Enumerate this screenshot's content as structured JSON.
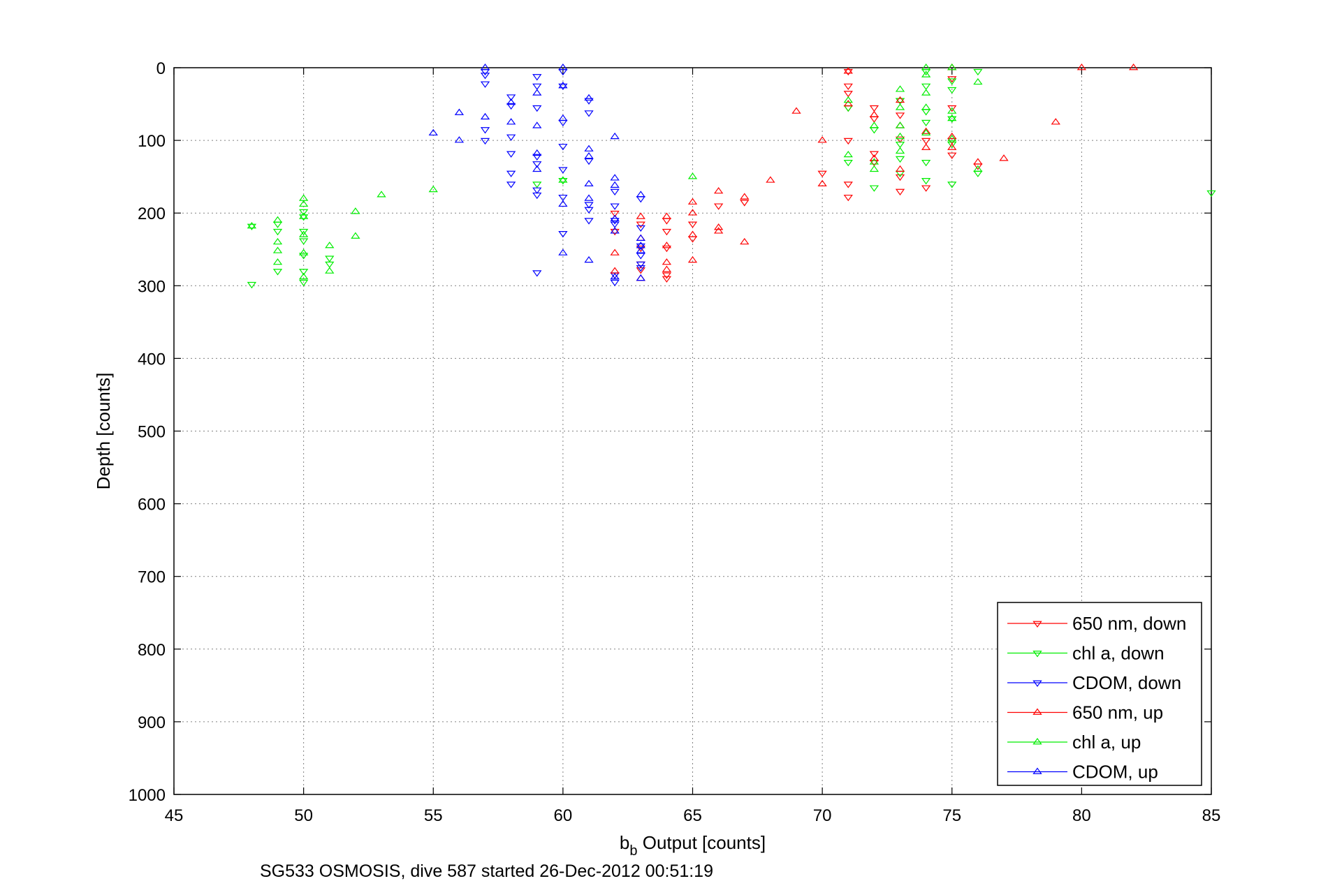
{
  "chart_data": {
    "type": "scatter",
    "title": "",
    "xlabel": "b",
    "xlabel_subscript": "b",
    "xlabel_suffix": " Output [counts]",
    "ylabel": "Depth [counts]",
    "caption": "SG533 OSMOSIS, dive 587 started 26-Dec-2012 00:51:19",
    "xlim": [
      45,
      85
    ],
    "ylim": [
      0,
      1000
    ],
    "y_reversed": true,
    "grid": true,
    "legend_position": "bottom-right",
    "x_ticks": [
      "45",
      "50",
      "55",
      "60",
      "65",
      "70",
      "75",
      "80",
      "85"
    ],
    "y_ticks": [
      "0",
      "100",
      "200",
      "300",
      "400",
      "500",
      "600",
      "700",
      "800",
      "900",
      "1000"
    ],
    "series": [
      {
        "name": "650 nm, down",
        "color": "#ff0000",
        "marker": "triangle-down",
        "x": [
          62,
          62,
          62,
          63,
          63,
          63,
          63,
          64,
          64,
          64,
          64,
          64,
          65,
          65,
          66,
          67,
          70,
          71,
          71,
          71,
          71,
          71,
          71,
          71,
          72,
          72,
          72,
          72,
          73,
          73,
          73,
          73,
          73,
          74,
          74,
          75,
          75,
          75,
          76,
          75
        ],
        "y": [
          200,
          225,
          285,
          215,
          248,
          270,
          278,
          210,
          225,
          248,
          285,
          290,
          235,
          215,
          190,
          185,
          145,
          5,
          25,
          35,
          55,
          100,
          160,
          178,
          55,
          70,
          118,
          130,
          45,
          65,
          98,
          150,
          170,
          100,
          165,
          15,
          55,
          120,
          135,
          100
        ]
      },
      {
        "name": "chl a, down",
        "color": "#00ee00",
        "marker": "triangle-down",
        "x": [
          48,
          48,
          49,
          49,
          49,
          50,
          50,
          50,
          50,
          50,
          50,
          50,
          51,
          51,
          59,
          60,
          71,
          71,
          72,
          72,
          73,
          73,
          73,
          73,
          74,
          74,
          74,
          74,
          74,
          74,
          75,
          75,
          75,
          75,
          75,
          76,
          76,
          85
        ],
        "y": [
          218,
          298,
          215,
          225,
          280,
          198,
          205,
          225,
          238,
          258,
          280,
          295,
          262,
          270,
          160,
          155,
          55,
          130,
          85,
          165,
          45,
          105,
          125,
          145,
          5,
          25,
          60,
          75,
          130,
          155,
          18,
          30,
          70,
          105,
          160,
          5,
          145,
          172
        ]
      },
      {
        "name": "CDOM, down",
        "color": "#0000ff",
        "marker": "triangle-down",
        "x": [
          57,
          57,
          57,
          57,
          57,
          58,
          58,
          58,
          58,
          58,
          58,
          59,
          59,
          59,
          59,
          59,
          59,
          59,
          59,
          60,
          60,
          60,
          60,
          60,
          60,
          60,
          61,
          61,
          61,
          61,
          61,
          61,
          62,
          62,
          62,
          62,
          62,
          62,
          63,
          63,
          63,
          63,
          63,
          63
        ],
        "y": [
          5,
          10,
          22,
          85,
          100,
          40,
          52,
          95,
          118,
          145,
          160,
          175,
          12,
          25,
          55,
          122,
          132,
          168,
          282,
          5,
          25,
          75,
          108,
          140,
          178,
          228,
          45,
          62,
          128,
          188,
          195,
          210,
          170,
          190,
          210,
          215,
          285,
          295,
          180,
          220,
          245,
          258,
          270,
          275
        ]
      },
      {
        "name": "650 nm, up",
        "color": "#ff0000",
        "marker": "triangle-up",
        "x": [
          62,
          62,
          63,
          63,
          63,
          64,
          64,
          64,
          64,
          65,
          65,
          65,
          65,
          66,
          66,
          66,
          67,
          67,
          68,
          69,
          70,
          70,
          71,
          71,
          72,
          72,
          73,
          73,
          73,
          74,
          74,
          75,
          75,
          75,
          76,
          77,
          79,
          80,
          82
        ],
        "y": [
          255,
          280,
          205,
          235,
          290,
          205,
          245,
          268,
          278,
          185,
          200,
          230,
          265,
          170,
          220,
          225,
          178,
          240,
          155,
          60,
          100,
          160,
          5,
          50,
          65,
          125,
          45,
          80,
          140,
          88,
          110,
          0,
          95,
          110,
          130,
          125,
          75,
          0,
          0
        ]
      },
      {
        "name": "chl a, up",
        "color": "#00ee00",
        "marker": "triangle-up",
        "x": [
          48,
          49,
          49,
          49,
          49,
          50,
          50,
          50,
          50,
          50,
          50,
          51,
          51,
          52,
          52,
          53,
          55,
          60,
          65,
          71,
          71,
          72,
          72,
          72,
          73,
          73,
          73,
          73,
          73,
          74,
          74,
          74,
          74,
          74,
          75,
          75,
          75,
          75,
          76,
          76
        ],
        "y": [
          218,
          210,
          240,
          252,
          268,
          180,
          188,
          205,
          230,
          255,
          288,
          245,
          280,
          198,
          232,
          175,
          168,
          155,
          150,
          45,
          120,
          80,
          130,
          140,
          30,
          55,
          80,
          95,
          115,
          0,
          10,
          35,
          55,
          90,
          0,
          60,
          70,
          98,
          20,
          140
        ]
      },
      {
        "name": "CDOM, up",
        "color": "#0000ff",
        "marker": "triangle-up",
        "x": [
          55,
          56,
          56,
          57,
          57,
          58,
          58,
          59,
          59,
          59,
          59,
          60,
          60,
          60,
          60,
          60,
          61,
          61,
          61,
          61,
          61,
          61,
          62,
          62,
          62,
          62,
          62,
          62,
          63,
          63,
          63,
          63,
          63
        ],
        "y": [
          90,
          62,
          100,
          0,
          68,
          48,
          75,
          80,
          35,
          118,
          140,
          0,
          25,
          70,
          188,
          255,
          42,
          112,
          122,
          160,
          180,
          265,
          95,
          152,
          162,
          208,
          225,
          288,
          175,
          235,
          245,
          252,
          290
        ]
      }
    ]
  }
}
